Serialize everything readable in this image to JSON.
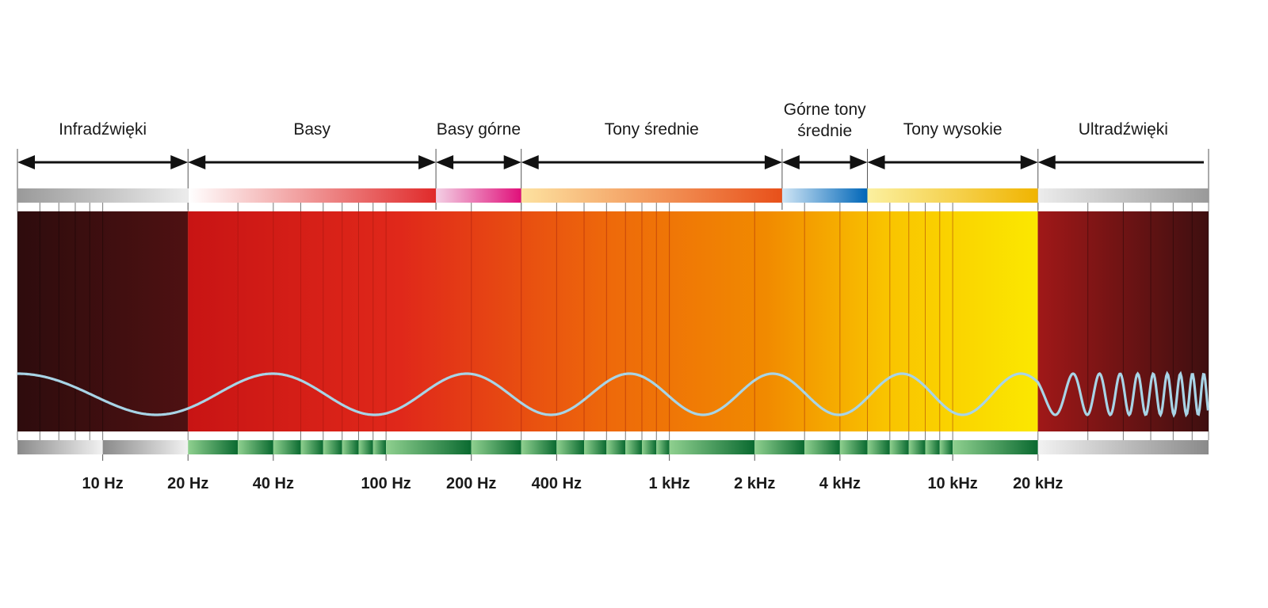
{
  "bands": [
    {
      "id": "infra",
      "label_lines": [
        "Infradźwięki"
      ],
      "from_hz": 5,
      "to_hz": 20
    },
    {
      "id": "bass",
      "label_lines": [
        "Basy"
      ],
      "from_hz": 20,
      "to_hz": 150
    },
    {
      "id": "upper-bass",
      "label_lines": [
        "Basy górne"
      ],
      "from_hz": 150,
      "to_hz": 300
    },
    {
      "id": "mids",
      "label_lines": [
        "Tony średnie"
      ],
      "from_hz": 300,
      "to_hz": 2500
    },
    {
      "id": "upper-mids",
      "label_lines": [
        "Górne tony",
        "średnie"
      ],
      "from_hz": 2500,
      "to_hz": 5000
    },
    {
      "id": "highs",
      "label_lines": [
        "Tony wysokie"
      ],
      "from_hz": 5000,
      "to_hz": 20000
    },
    {
      "id": "ultra",
      "label_lines": [
        "Ultradźwięki"
      ],
      "from_hz": 20000,
      "to_hz": 80000
    }
  ],
  "frequency_labels": [
    {
      "hz": 10,
      "text": "10 Hz"
    },
    {
      "hz": 20,
      "text": "20 Hz"
    },
    {
      "hz": 40,
      "text": "40 Hz"
    },
    {
      "hz": 100,
      "text": "100 Hz"
    },
    {
      "hz": 200,
      "text": "200 Hz"
    },
    {
      "hz": 400,
      "text": "400 Hz"
    },
    {
      "hz": 1000,
      "text": "1 kHz"
    },
    {
      "hz": 2000,
      "text": "2  kHz"
    },
    {
      "hz": 4000,
      "text": "4 kHz"
    },
    {
      "hz": 10000,
      "text": "10 kHz"
    },
    {
      "hz": 20000,
      "text": "20 kHz"
    }
  ],
  "scale": {
    "min_hz": 5,
    "max_hz": 80000,
    "log": true
  },
  "colors": {
    "arrow": "#111111",
    "wave": "#a8d4e6",
    "infra_bar": "#3a0f10",
    "audible_start": "#c81414",
    "audible_mid": "#f07a00",
    "audible_end": "#fbe800",
    "ultra_bar_start": "#a01818",
    "ultra_bar_end": "#4a1010",
    "green_dark": "#0a6a30",
    "green_light": "#8fd08f",
    "grey_dark": "#8a8a8a",
    "grey_light": "#f2f2f2"
  }
}
